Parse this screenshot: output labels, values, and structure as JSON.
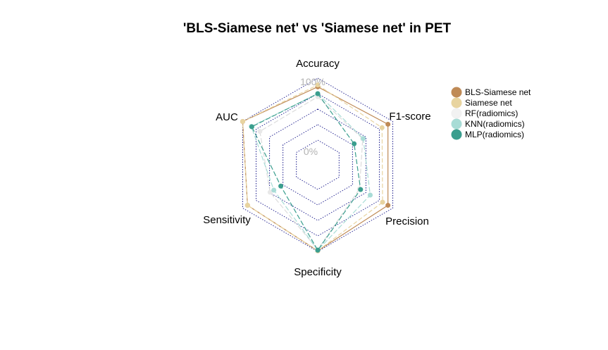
{
  "chart_data": {
    "type": "radar",
    "title": "'BLS-Siamese net' vs 'Siamese net' in PET",
    "axes": [
      "Accuracy",
      "F1-score",
      "Precision",
      "Specificity",
      "Sensitivity",
      "AUC"
    ],
    "tick_labels": [
      "0%",
      "100%"
    ],
    "range": [
      0,
      1
    ],
    "grid_levels": 4,
    "legend_position": "right",
    "series": [
      {
        "name": "BLS-Siamese net",
        "color": "#bf8a56",
        "values": [
          0.86,
          0.91,
          0.91,
          0.99,
          0.91,
          1.0
        ]
      },
      {
        "name": "Siamese net",
        "color": "#e8d4a0",
        "values": [
          0.89,
          0.8,
          0.81,
          0.99,
          0.91,
          1.0
        ]
      },
      {
        "name": "RF(radiomics)",
        "color": "#f2f2f2",
        "values": [
          0.7,
          0.44,
          0.38,
          0.97,
          0.49,
          0.68
        ]
      },
      {
        "name": "KNN(radiomics)",
        "color": "#a8dcd6",
        "values": [
          0.75,
          0.45,
          0.58,
          0.98,
          0.42,
          0.84
        ]
      },
      {
        "name": "MLP(radiomics)",
        "color": "#3a9e8e",
        "values": [
          0.75,
          0.28,
          0.4,
          0.98,
          0.29,
          0.83
        ]
      }
    ]
  }
}
